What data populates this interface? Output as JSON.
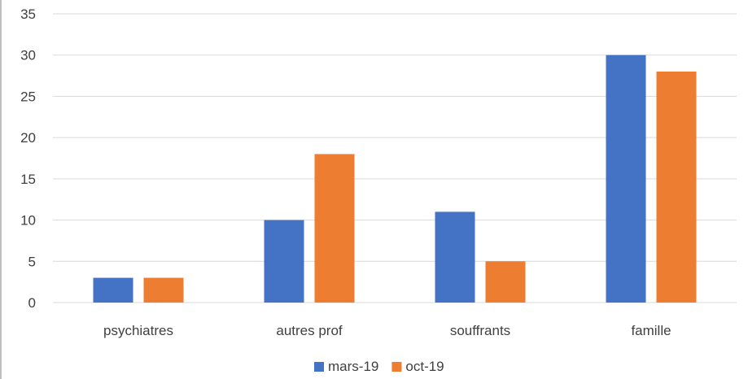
{
  "chart_data": {
    "type": "bar",
    "categories": [
      "psychiatres",
      "autres prof",
      "souffrants",
      "famille"
    ],
    "series": [
      {
        "name": "mars-19",
        "values": [
          3,
          10,
          11,
          30
        ],
        "color": "#4472C4"
      },
      {
        "name": "oct-19",
        "values": [
          3,
          18,
          5,
          28
        ],
        "color": "#ED7D31"
      }
    ],
    "ylim": [
      0,
      35
    ],
    "yticks": [
      0,
      5,
      10,
      15,
      20,
      25,
      30,
      35
    ],
    "grid": true,
    "legend": "bottom",
    "title": "",
    "xlabel": "",
    "ylabel": ""
  },
  "colors": {
    "gridline": "#d9d9d9",
    "text": "#404040",
    "left_edge": "#bfbfbf"
  }
}
